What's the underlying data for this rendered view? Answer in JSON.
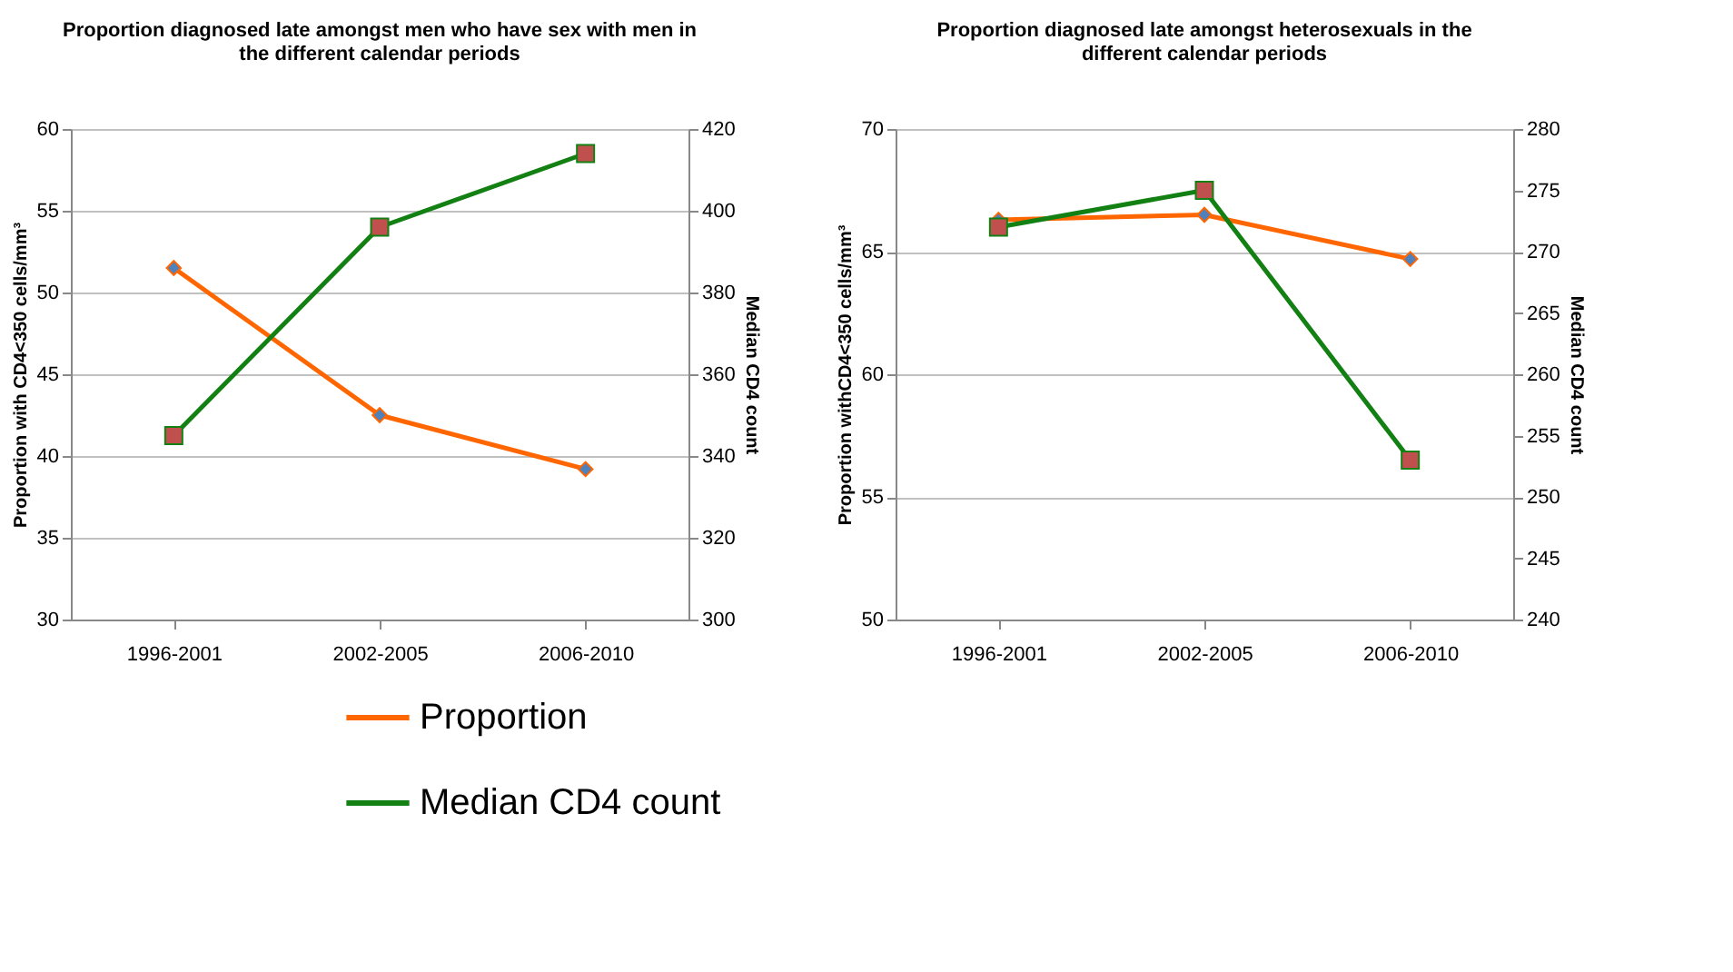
{
  "chart_data": [
    {
      "type": "line",
      "title": "Proportion diagnosed late amongst men who have sex with men in the different calendar periods",
      "ylabel": "Proportion with CD4<350 cells/mm³",
      "y2label": "Median CD4 count",
      "categories": [
        "1996-2001",
        "2002-2005",
        "2006-2010"
      ],
      "series": [
        {
          "name": "Proportion",
          "color": "#ff6600",
          "marker": "diamond",
          "values": [
            51.5,
            42.5,
            39.2
          ]
        },
        {
          "name": "Median CD4 count",
          "color": "#138013",
          "marker": "square",
          "axis": "y2",
          "values": [
            345,
            396,
            414
          ]
        }
      ],
      "ylim": [
        30,
        60
      ],
      "yticks": [
        30,
        35,
        40,
        45,
        50,
        55,
        60
      ],
      "y2lim": [
        300,
        420
      ],
      "y2ticks": [
        300,
        320,
        340,
        360,
        380,
        400,
        420
      ],
      "grid": "y",
      "legend": "bottom"
    },
    {
      "type": "line",
      "title": "Proportion diagnosed late amongst heterosexuals in the different calendar periods",
      "ylabel": "Proportion withCD4<350 cells/mm³",
      "y2label": "Median CD4 count",
      "categories": [
        "1996-2001",
        "2002-2005",
        "2006-2010"
      ],
      "series": [
        {
          "color": "#ff6600",
          "marker": "diamond",
          "values": [
            66.3,
            66.5,
            64.7
          ]
        },
        {
          "color": "#138013",
          "marker": "square",
          "axis": "y2",
          "values": [
            272,
            275,
            253
          ]
        }
      ],
      "ylim": [
        50,
        70
      ],
      "yticks": [
        50,
        55,
        60,
        65,
        70
      ],
      "y2lim": [
        240,
        280
      ],
      "y2ticks": [
        240,
        245,
        250,
        255,
        260,
        265,
        270,
        275,
        280
      ],
      "grid": "y",
      "legend": "bottom"
    }
  ]
}
